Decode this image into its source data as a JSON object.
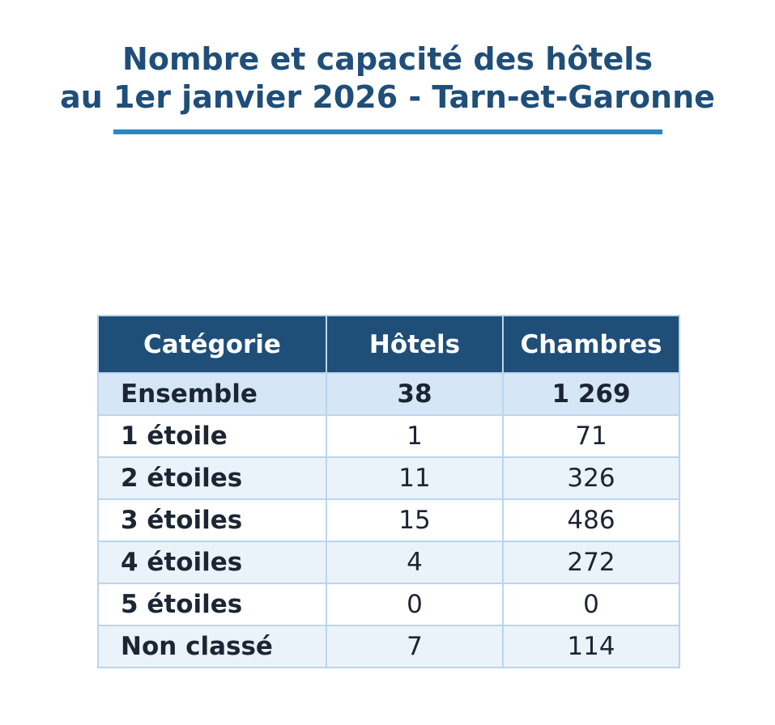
{
  "chart_data": {
    "type": "table",
    "title_line1": "Nombre et capacité des hôtels",
    "title_line2": "au 1er janvier 2026 - Tarn-et-Garonne",
    "columns": [
      "Catégorie",
      "Hôtels",
      "Chambres"
    ],
    "rows": [
      {
        "categorie": "Ensemble",
        "hotels": "38",
        "chambres": "1 269"
      },
      {
        "categorie": "1 étoile",
        "hotels": "1",
        "chambres": "71"
      },
      {
        "categorie": "2 étoiles",
        "hotels": "11",
        "chambres": "326"
      },
      {
        "categorie": "3 étoiles",
        "hotels": "15",
        "chambres": "486"
      },
      {
        "categorie": "4 étoiles",
        "hotels": "4",
        "chambres": "272"
      },
      {
        "categorie": "5 étoiles",
        "hotels": "0",
        "chambres": "0"
      },
      {
        "categorie": "Non classé",
        "hotels": "7",
        "chambres": "114"
      }
    ]
  },
  "colors": {
    "title": "#1f4e79",
    "accent_rule": "#2e86c1",
    "header_bg": "#1f4e79",
    "header_text": "#ffffff",
    "total_row_bg": "#d5e6f7",
    "stripe_bg": "#eaf2fa",
    "grid": "#bcd5ec"
  }
}
